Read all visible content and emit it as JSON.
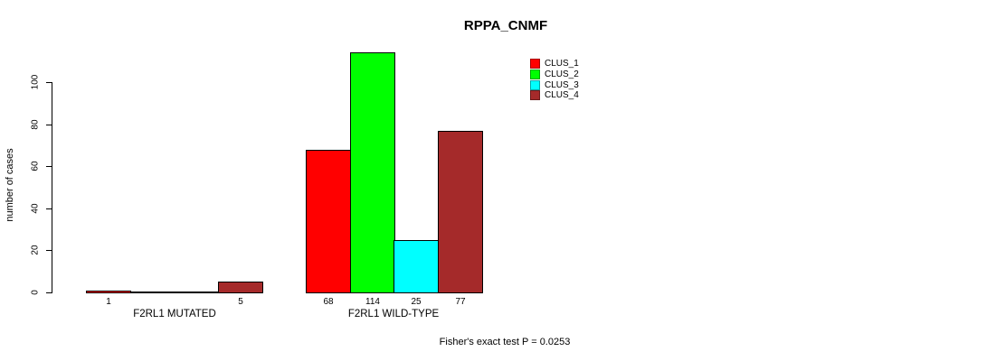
{
  "chart_data": {
    "type": "bar",
    "title": "RPPA_CNMF",
    "xlabel": "",
    "ylabel": "number of cases",
    "footnote": "Fisher's exact test P = 0.0253",
    "categories": [
      "F2RL1 MUTATED",
      "F2RL1 WILD-TYPE"
    ],
    "series": [
      {
        "name": "CLUS_1",
        "color": "#ff0000",
        "values": [
          1,
          68
        ]
      },
      {
        "name": "CLUS_2",
        "color": "#00ff00",
        "values": [
          0,
          114
        ]
      },
      {
        "name": "CLUS_3",
        "color": "#00ffff",
        "values": [
          0,
          25
        ]
      },
      {
        "name": "CLUS_4",
        "color": "#a52a2a",
        "values": [
          5,
          77
        ]
      }
    ],
    "yticks": [
      0,
      20,
      40,
      60,
      80,
      100
    ],
    "ylim": [
      0,
      114
    ],
    "grid": false,
    "legend_position": "top-right",
    "bar_border_color": "#000000"
  }
}
